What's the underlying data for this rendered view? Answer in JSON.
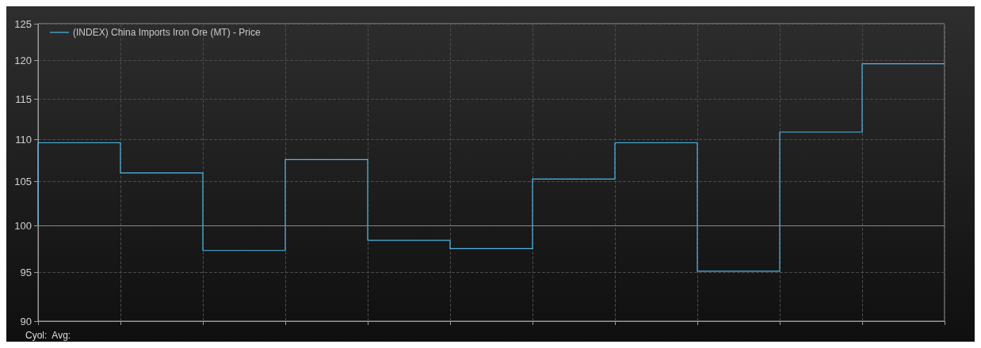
{
  "chart_data": {
    "type": "step",
    "categories": [
      null,
      null,
      null,
      null,
      null,
      null,
      null,
      null,
      null,
      null,
      null,
      null
    ],
    "series": [
      {
        "name": "(INDEX) China Imports Iron Ore (MT) - Price",
        "color": "#4fb8e6",
        "values": [
          100,
          109.6,
          106.0,
          97.3,
          107.6,
          98.4,
          97.5,
          105.3,
          109.6,
          95.1,
          110.9,
          119.6
        ]
      }
    ],
    "ylim": [
      90,
      125
    ],
    "yticks": [
      90,
      95,
      100,
      105,
      110,
      115,
      120,
      125
    ],
    "log": "y",
    "grid": true,
    "legend": "top left",
    "tick_labels": "y",
    "marker": "none",
    "line_style": "solid",
    "ref_lines": [
      {
        "axis": "y",
        "value": 100,
        "color": "#8a8a8a"
      }
    ],
    "annotations": [
      "Cyol:  Avg:"
    ]
  }
}
